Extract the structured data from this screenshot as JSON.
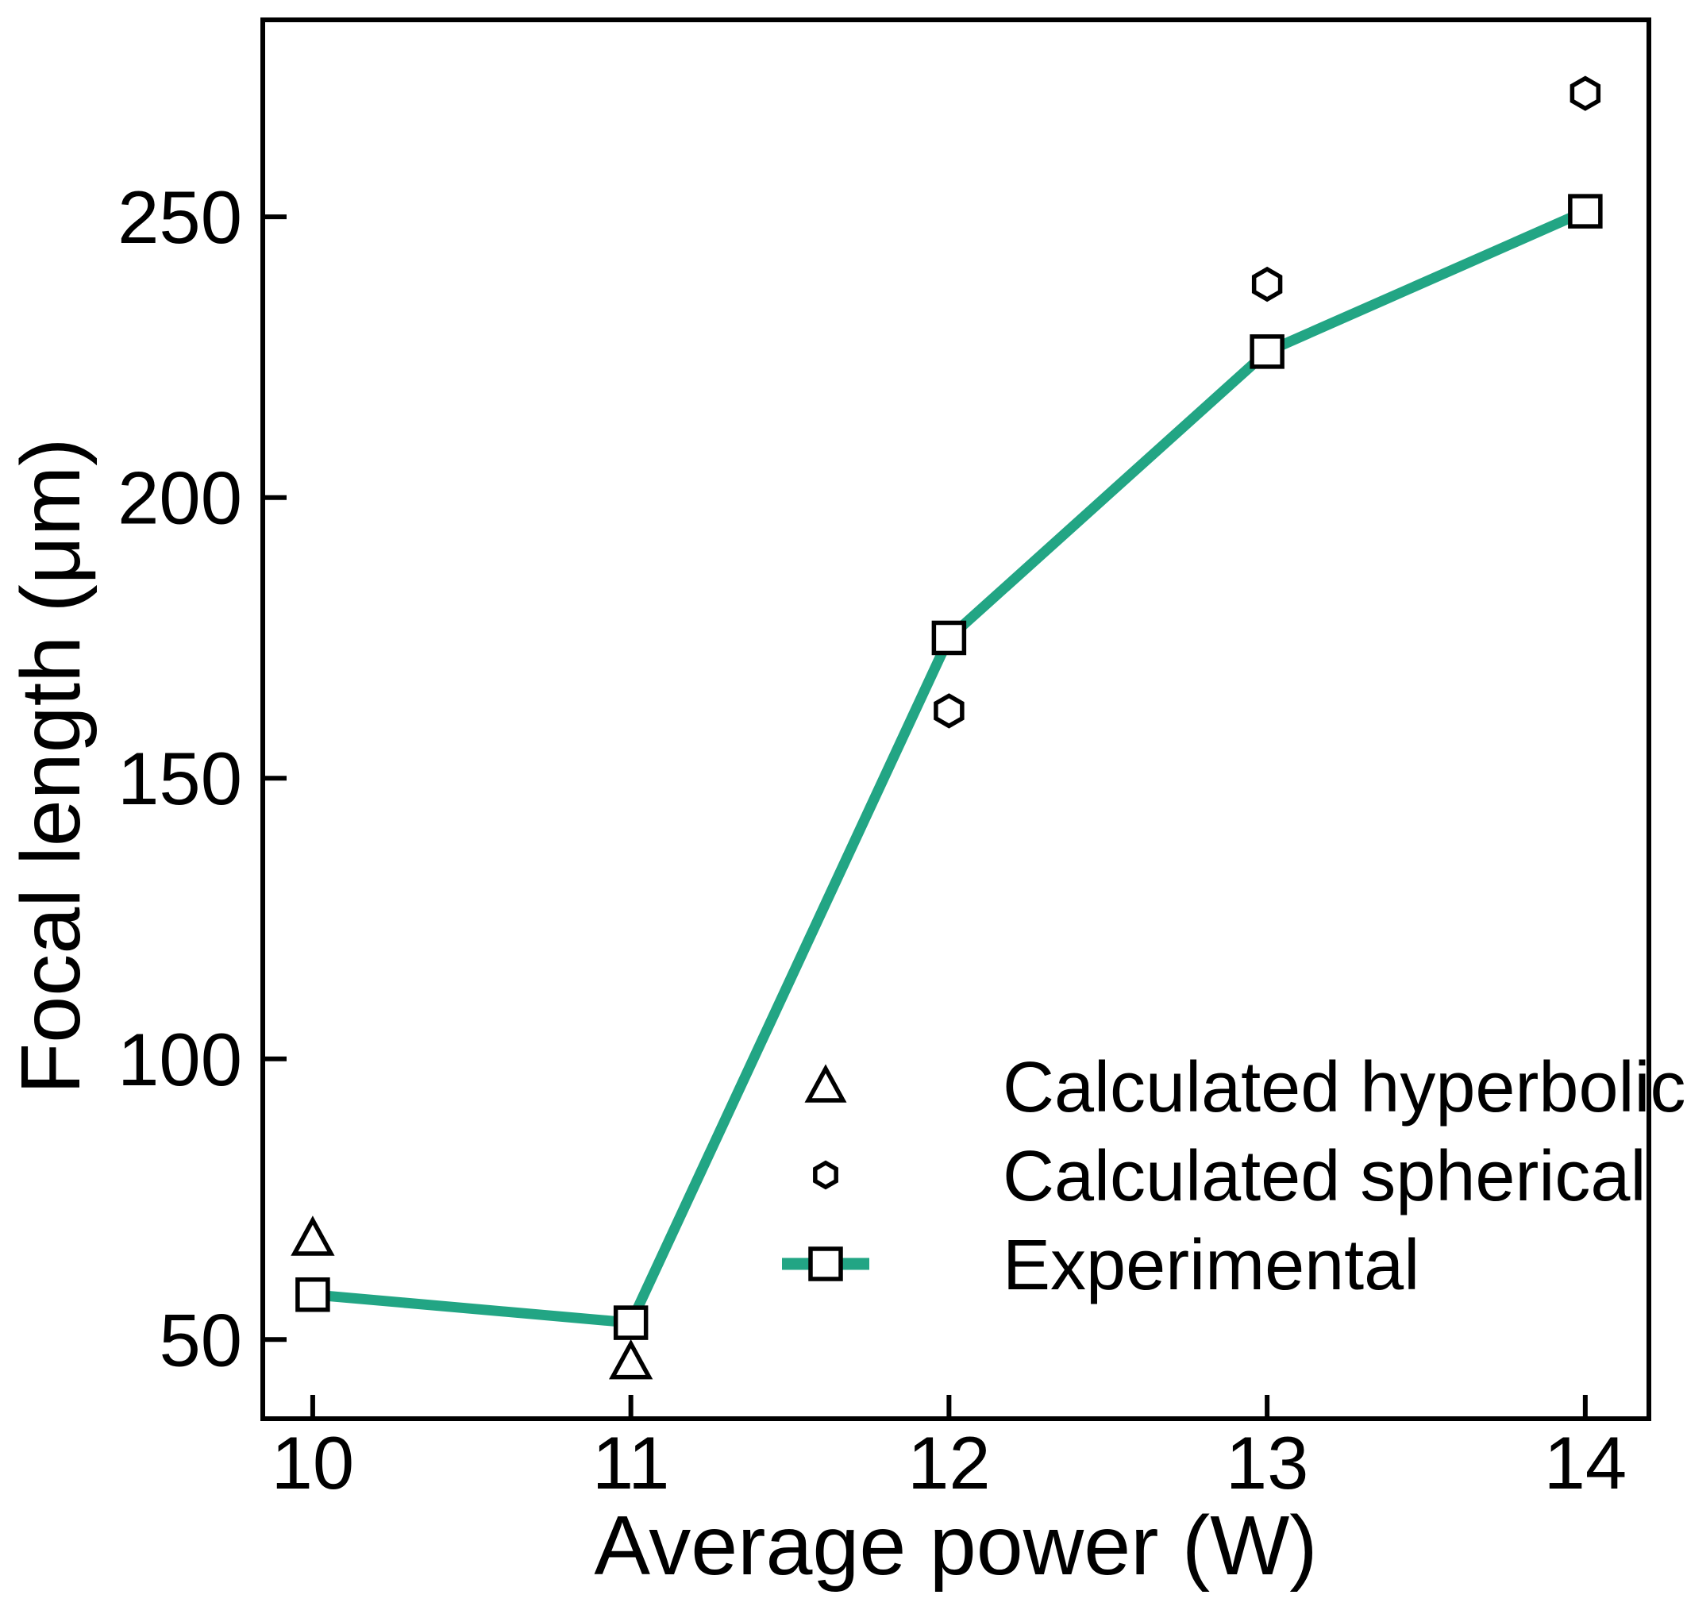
{
  "figure": {
    "background": "#ffffff"
  },
  "colors": {
    "accent_teal": "#22a584",
    "axis_black": "#000000",
    "marker_fill": "#ffffff"
  },
  "chart_data": {
    "type": "line",
    "title": "",
    "xlabel": "Average power (W)",
    "ylabel": "Focal length (μm)",
    "x": [
      10,
      11,
      12,
      13,
      14
    ],
    "series": [
      {
        "name": "Calculated hyperbolic",
        "marker": "triangle",
        "line": false,
        "color": "#000000",
        "values": [
          68,
          46,
          null,
          null,
          null
        ]
      },
      {
        "name": "Calculated spherical",
        "marker": "hexagon",
        "line": false,
        "color": "#000000",
        "values": [
          null,
          null,
          162,
          238,
          272
        ]
      },
      {
        "name": "Experimental",
        "marker": "square",
        "line": true,
        "color": "#22a584",
        "values": [
          58,
          53,
          175,
          226,
          251
        ]
      }
    ],
    "xlim": [
      9.843,
      14.2
    ],
    "ylim": [
      35.9,
      285.1
    ],
    "xticks": [
      "10",
      "11",
      "12",
      "13",
      "14"
    ],
    "xtick_values": [
      10,
      11,
      12,
      13,
      14
    ],
    "yticks": [
      "50",
      "100",
      "150",
      "200",
      "250"
    ],
    "ytick_values": [
      50,
      100,
      150,
      200,
      250
    ],
    "grid": false,
    "frame": "box",
    "tick_direction": "in",
    "legend": {
      "position": "lower-right-inside",
      "entries": [
        {
          "label": "Calculated hyperbolic",
          "marker": "triangle",
          "line": false
        },
        {
          "label": "Calculated spherical",
          "marker": "hexagon",
          "line": false
        },
        {
          "label": "Experimental",
          "marker": "square",
          "line": true
        }
      ]
    }
  }
}
